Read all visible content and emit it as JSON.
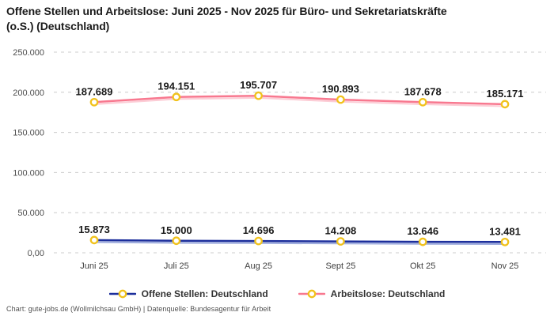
{
  "header": {
    "title": "Offene Stellen und Arbeitslose: Juni 2025 - Nov 2025 für Büro- und Sekretariatskräfte (o.S.) (Deutschland)"
  },
  "chart_data": {
    "type": "line",
    "title": "Offene Stellen und Arbeitslose: Juni 2025 - Nov 2025 für Büro- und Sekretariatskräfte (o.S.) (Deutschland)",
    "categories": [
      "Juni 25",
      "Juli 25",
      "Aug 25",
      "Sept 25",
      "Okt 25",
      "Nov 25"
    ],
    "series": [
      {
        "key": "offene-stellen",
        "name": "Offene Stellen: Deutschland",
        "color": "#1d2f9c",
        "shadow_color": "#9fadde",
        "values": [
          15873,
          15000,
          14696,
          14208,
          13646,
          13481
        ],
        "value_labels": [
          "15.873",
          "15.000",
          "14.696",
          "14.208",
          "13.646",
          "13.481"
        ]
      },
      {
        "key": "arbeitslose",
        "name": "Arbeitslose: Deutschland",
        "color": "#f8788f",
        "shadow_color": "#fccdd6",
        "values": [
          187689,
          194151,
          195707,
          190893,
          187678,
          185171
        ],
        "value_labels": [
          "187.689",
          "194.151",
          "195.707",
          "190.893",
          "187.678",
          "185.171"
        ]
      }
    ],
    "marker": {
      "fill": "#ffffff",
      "ring_color": "#f1c21b"
    },
    "y_axis": {
      "range": [
        0,
        250000
      ],
      "ticks": [
        0,
        50000,
        100000,
        150000,
        200000,
        250000
      ],
      "tick_labels": [
        "0,00",
        "50.000",
        "100.000",
        "150.000",
        "200.000",
        "250.000"
      ]
    },
    "grid": {
      "style": "dashed",
      "color": "#cccccc"
    },
    "legend_position": "bottom",
    "text_colors": {
      "data_label": "#1a1a1a",
      "tick_label": "#4d4d4d",
      "x_label": "#404040"
    }
  },
  "footer": {
    "text": "Chart: gute-jobs.de (Wollmilchsau GmbH) | Datenquelle: Bundesagentur für Arbeit"
  }
}
